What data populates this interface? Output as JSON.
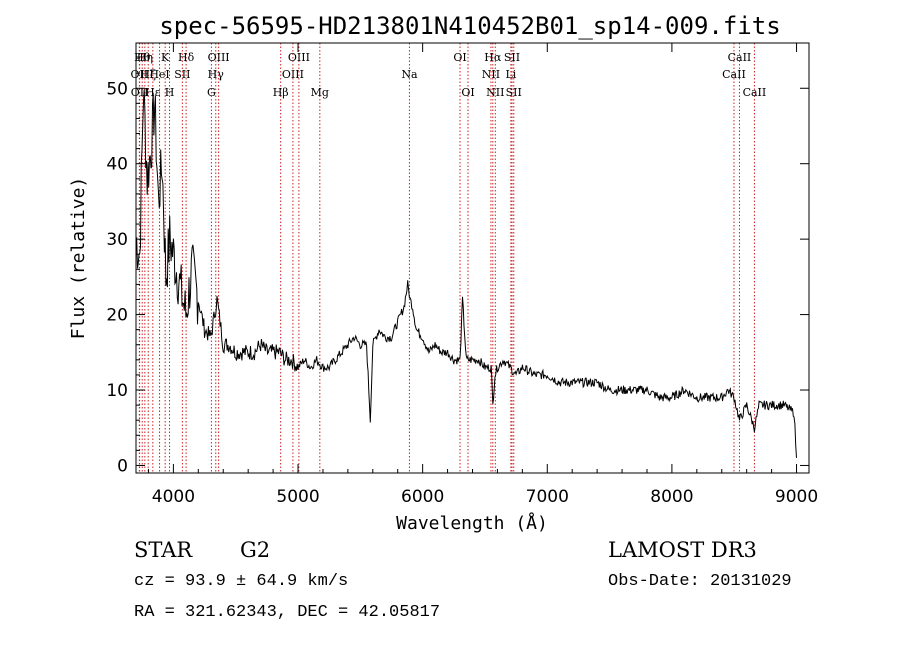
{
  "colors": {
    "spectrum": "#000000",
    "lines": "#cc2222",
    "axes": "#000000"
  },
  "info": {
    "object_class": "STAR",
    "subclass": "G2",
    "cz": "cz = 93.9 ± 64.9 km/s",
    "coords": "RA = 321.62343, DEC =  42.05817",
    "survey": "LAMOST DR3",
    "obs_date": "Obs-Date: 20131029"
  },
  "chart_data": {
    "type": "line",
    "title": "spec-56595-HD213801N410452B01_sp14-009.fits",
    "xlabel": "Wavelength (Å)",
    "ylabel": "Flux (relative)",
    "xlim": [
      3700,
      9100
    ],
    "ylim": [
      -1,
      56
    ],
    "xticks": [
      4000,
      5000,
      6000,
      7000,
      8000,
      9000
    ],
    "yticks": [
      0,
      10,
      20,
      30,
      40,
      50
    ],
    "grid": false,
    "series": [
      {
        "name": "spectrum",
        "x": [
          3700,
          3730,
          3760,
          3790,
          3820,
          3850,
          3880,
          3910,
          3940,
          3970,
          4000,
          4050,
          4100,
          4150,
          4200,
          4250,
          4300,
          4350,
          4400,
          4450,
          4500,
          4550,
          4600,
          4650,
          4700,
          4750,
          4800,
          4850,
          4900,
          4950,
          5000,
          5050,
          5100,
          5150,
          5200,
          5250,
          5300,
          5350,
          5400,
          5450,
          5500,
          5550,
          5580,
          5600,
          5650,
          5700,
          5750,
          5800,
          5850,
          5880,
          5900,
          5920,
          5950,
          6000,
          6050,
          6100,
          6150,
          6200,
          6250,
          6300,
          6320,
          6350,
          6400,
          6450,
          6500,
          6550,
          6563,
          6580,
          6600,
          6650,
          6700,
          6750,
          6800,
          6900,
          7000,
          7100,
          7200,
          7300,
          7400,
          7500,
          7600,
          7700,
          7800,
          7900,
          8000,
          8100,
          8200,
          8300,
          8400,
          8450,
          8500,
          8542,
          8600,
          8662,
          8700,
          8800,
          8900,
          8980,
          9000
        ],
        "y": [
          30,
          28,
          50,
          38,
          42,
          48,
          35,
          40,
          25,
          30,
          28,
          24,
          20,
          26,
          22,
          18,
          17,
          22,
          16,
          16,
          15,
          15,
          15,
          15,
          16,
          15,
          15,
          15,
          14,
          14,
          13,
          14,
          13,
          14,
          13,
          13,
          14,
          15,
          16,
          17,
          16,
          16,
          6,
          16,
          18,
          17,
          17,
          19,
          21,
          24,
          22,
          21,
          18,
          17,
          15,
          16,
          15,
          15,
          14,
          14,
          22,
          14,
          14,
          14,
          13,
          13,
          8,
          12,
          13,
          14,
          13,
          12,
          13,
          12,
          12,
          11,
          11,
          11,
          11,
          10,
          10,
          10,
          10,
          9,
          9,
          10,
          9,
          9,
          9,
          10,
          9,
          6,
          8,
          5,
          8,
          8,
          8,
          7,
          1
        ]
      }
    ],
    "lines": [
      {
        "name": "OII",
        "wl": 3727,
        "row": 1
      },
      {
        "name": "OII",
        "wl": 3729,
        "row": 2
      },
      {
        "name": "Hθ",
        "wl": 3750,
        "row": 0
      },
      {
        "name": "Hη",
        "wl": 3771,
        "row": 0
      },
      {
        "name": "Hζ",
        "wl": 3798,
        "row": 1
      },
      {
        "name": "Hε",
        "wl": 3835,
        "row": 2
      },
      {
        "name": "HeI",
        "wl": 3889,
        "row": 1
      },
      {
        "name": "K",
        "wl": 3934,
        "row": 0
      },
      {
        "name": "H",
        "wl": 3969,
        "row": 2
      },
      {
        "name": "SII",
        "wl": 4072,
        "row": 1
      },
      {
        "name": "Hδ",
        "wl": 4102,
        "row": 0
      },
      {
        "name": "G",
        "wl": 4305,
        "row": 2
      },
      {
        "name": "Hγ",
        "wl": 4340,
        "row": 1
      },
      {
        "name": "OIII",
        "wl": 4363,
        "row": 0
      },
      {
        "name": "Hβ",
        "wl": 4861,
        "row": 2
      },
      {
        "name": "OIII",
        "wl": 4959,
        "row": 1
      },
      {
        "name": "OIII",
        "wl": 5007,
        "row": 0
      },
      {
        "name": "Mg",
        "wl": 5175,
        "row": 2
      },
      {
        "name": "Na",
        "wl": 5894,
        "row": 1
      },
      {
        "name": "OI",
        "wl": 6300,
        "row": 0
      },
      {
        "name": "OI",
        "wl": 6364,
        "row": 2
      },
      {
        "name": "NII",
        "wl": 6548,
        "row": 1
      },
      {
        "name": "Hα",
        "wl": 6563,
        "row": 0
      },
      {
        "name": "NII",
        "wl": 6583,
        "row": 2
      },
      {
        "name": "Li",
        "wl": 6708,
        "row": 1
      },
      {
        "name": "SII",
        "wl": 6717,
        "row": 0
      },
      {
        "name": "SII",
        "wl": 6731,
        "row": 2
      },
      {
        "name": "CaII",
        "wl": 8498,
        "row": 1
      },
      {
        "name": "CaII",
        "wl": 8542,
        "row": 0
      },
      {
        "name": "CaII",
        "wl": 8662,
        "row": 2
      }
    ]
  }
}
